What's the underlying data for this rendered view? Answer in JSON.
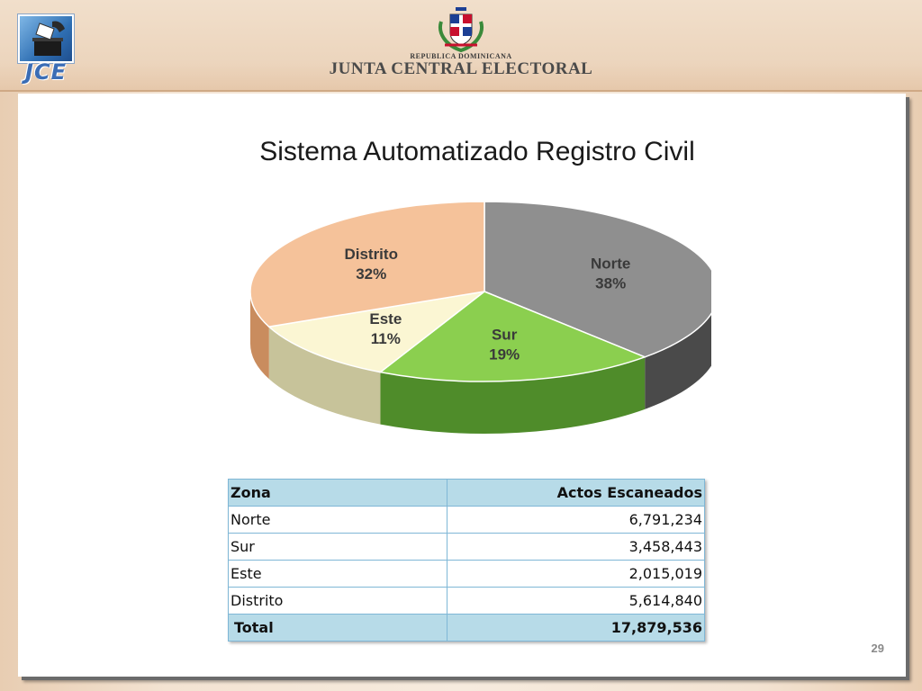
{
  "header": {
    "logo_text": "JCE",
    "country_caption": "REPUBLICA DOMINICANA",
    "organization_title": "JUNTA CENTRAL ELECTORAL"
  },
  "slide": {
    "title": "Sistema Automatizado Registro Civil",
    "page_number": "29"
  },
  "chart_data": {
    "type": "pie",
    "title": "",
    "slices": [
      {
        "label": "Norte",
        "percent_label": "38%",
        "value": 6791234,
        "color": "#8f8f8f",
        "side_color": "#4a4a4a"
      },
      {
        "label": "Sur",
        "percent_label": "19%",
        "value": 3458443,
        "color": "#8bcf4f",
        "side_color": "#4f8c2a"
      },
      {
        "label": "Este",
        "percent_label": "11%",
        "value": 2015019,
        "color": "#fbf6d3",
        "side_color": "#c7c39a"
      },
      {
        "label": "Distrito",
        "percent_label": "32%",
        "value": 5614840,
        "color": "#f5c29a",
        "side_color": "#c98c5e"
      }
    ],
    "style": "3d"
  },
  "table": {
    "header": [
      "Zona",
      "Actos Escaneados"
    ],
    "rows": [
      [
        "Norte",
        "6,791,234"
      ],
      [
        "Sur",
        "3,458,443"
      ],
      [
        "Este",
        "2,015,019"
      ],
      [
        "Distrito",
        "5,614,840"
      ]
    ],
    "total": [
      "Total",
      "17,879,536"
    ]
  },
  "colors": {
    "table_header_bg": "#b7dbe8",
    "table_border": "#7fb7d6"
  }
}
